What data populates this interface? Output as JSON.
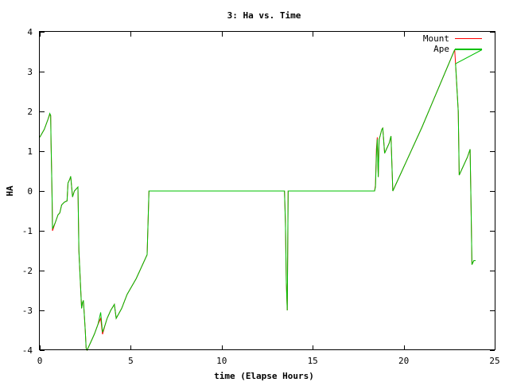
{
  "chart_data": {
    "type": "line",
    "title": "3: Ha vs. Time",
    "xlabel": "time (Elapse Hours)",
    "ylabel": "HA",
    "xlim": [
      0,
      25
    ],
    "ylim": [
      -4,
      4
    ],
    "xticks": [
      0,
      5,
      10,
      15,
      20,
      25
    ],
    "yticks": [
      -4,
      -3,
      -2,
      -1,
      0,
      1,
      2,
      3,
      4
    ],
    "grid": false,
    "legend_position": "top-right",
    "series": [
      {
        "name": "Mount",
        "color": "#ff0000",
        "points": [
          [
            0.0,
            1.35
          ],
          [
            0.25,
            1.55
          ],
          [
            0.45,
            1.8
          ],
          [
            0.55,
            1.92
          ],
          [
            0.6,
            1.9
          ],
          [
            0.62,
            1.2
          ],
          [
            0.65,
            0.5
          ],
          [
            0.68,
            -0.3
          ],
          [
            0.7,
            -1.0
          ],
          [
            0.85,
            -0.8
          ],
          [
            1.0,
            -0.6
          ],
          [
            1.1,
            -0.55
          ],
          [
            1.2,
            -0.35
          ],
          [
            1.35,
            -0.28
          ],
          [
            1.5,
            -0.25
          ],
          [
            1.55,
            0.2
          ],
          [
            1.65,
            0.3
          ],
          [
            1.7,
            0.37
          ],
          [
            1.8,
            -0.15
          ],
          [
            1.9,
            0.0
          ],
          [
            2.1,
            0.1
          ],
          [
            2.15,
            -1.5
          ],
          [
            2.3,
            -2.95
          ],
          [
            2.35,
            -2.8
          ],
          [
            2.4,
            -2.75
          ],
          [
            2.5,
            -3.5
          ],
          [
            2.55,
            -3.95
          ],
          [
            2.6,
            -4.0
          ],
          [
            2.8,
            -3.8
          ],
          [
            3.0,
            -3.6
          ],
          [
            3.2,
            -3.35
          ],
          [
            3.35,
            -3.2
          ],
          [
            3.45,
            -3.6
          ],
          [
            3.6,
            -3.35
          ],
          [
            3.7,
            -3.2
          ],
          [
            3.9,
            -3.0
          ],
          [
            4.1,
            -2.85
          ],
          [
            4.2,
            -3.2
          ],
          [
            4.5,
            -2.95
          ],
          [
            4.8,
            -2.6
          ],
          [
            5.3,
            -2.2
          ],
          [
            5.9,
            -1.6
          ],
          [
            6.0,
            0.0
          ],
          [
            8.0,
            0.0
          ],
          [
            10.0,
            0.0
          ],
          [
            12.0,
            0.0
          ],
          [
            13.45,
            0.0
          ],
          [
            13.5,
            -0.8
          ],
          [
            13.55,
            -2.3
          ],
          [
            13.6,
            -3.0
          ],
          [
            13.65,
            0.0
          ],
          [
            15.0,
            0.0
          ],
          [
            17.0,
            0.0
          ],
          [
            18.4,
            0.0
          ],
          [
            18.45,
            0.15
          ],
          [
            18.5,
            1.05
          ],
          [
            18.55,
            1.35
          ],
          [
            18.6,
            0.35
          ],
          [
            18.65,
            1.3
          ],
          [
            18.7,
            1.38
          ],
          [
            18.8,
            1.55
          ],
          [
            18.85,
            1.58
          ],
          [
            18.95,
            0.95
          ],
          [
            19.2,
            1.2
          ],
          [
            19.3,
            1.38
          ],
          [
            19.4,
            0.0
          ],
          [
            21.0,
            1.6
          ],
          [
            22.8,
            3.55
          ],
          [
            22.85,
            3.2
          ],
          [
            23.0,
            2.0
          ],
          [
            23.05,
            0.4
          ],
          [
            23.5,
            0.85
          ],
          [
            23.65,
            1.05
          ],
          [
            23.7,
            -0.4
          ],
          [
            23.75,
            -1.85
          ],
          [
            23.85,
            -1.75
          ],
          [
            23.95,
            -1.75
          ]
        ]
      },
      {
        "name": "Ape",
        "color": "#00c000",
        "points": [
          [
            0.0,
            1.35
          ],
          [
            0.25,
            1.55
          ],
          [
            0.45,
            1.8
          ],
          [
            0.55,
            1.95
          ],
          [
            0.6,
            1.9
          ],
          [
            0.62,
            1.2
          ],
          [
            0.65,
            0.5
          ],
          [
            0.68,
            -0.3
          ],
          [
            0.7,
            -0.95
          ],
          [
            0.85,
            -0.8
          ],
          [
            1.0,
            -0.6
          ],
          [
            1.1,
            -0.55
          ],
          [
            1.2,
            -0.35
          ],
          [
            1.35,
            -0.28
          ],
          [
            1.5,
            -0.25
          ],
          [
            1.55,
            0.2
          ],
          [
            1.65,
            0.3
          ],
          [
            1.7,
            0.37
          ],
          [
            1.8,
            -0.15
          ],
          [
            1.9,
            0.0
          ],
          [
            2.1,
            0.1
          ],
          [
            2.15,
            -1.5
          ],
          [
            2.3,
            -2.95
          ],
          [
            2.35,
            -2.8
          ],
          [
            2.4,
            -2.75
          ],
          [
            2.5,
            -3.5
          ],
          [
            2.55,
            -3.95
          ],
          [
            2.6,
            -4.0
          ],
          [
            2.8,
            -3.8
          ],
          [
            3.0,
            -3.6
          ],
          [
            3.2,
            -3.35
          ],
          [
            3.35,
            -3.05
          ],
          [
            3.45,
            -3.55
          ],
          [
            3.6,
            -3.35
          ],
          [
            3.7,
            -3.2
          ],
          [
            3.9,
            -3.0
          ],
          [
            4.1,
            -2.85
          ],
          [
            4.2,
            -3.2
          ],
          [
            4.5,
            -2.95
          ],
          [
            4.8,
            -2.6
          ],
          [
            5.3,
            -2.2
          ],
          [
            5.9,
            -1.6
          ],
          [
            6.0,
            0.0
          ],
          [
            8.0,
            0.0
          ],
          [
            10.0,
            0.0
          ],
          [
            12.0,
            0.0
          ],
          [
            13.45,
            0.0
          ],
          [
            13.5,
            -0.8
          ],
          [
            13.55,
            -2.3
          ],
          [
            13.6,
            -3.0
          ],
          [
            13.65,
            0.0
          ],
          [
            15.0,
            0.0
          ],
          [
            17.0,
            0.0
          ],
          [
            18.4,
            0.0
          ],
          [
            18.45,
            0.1
          ],
          [
            18.5,
            0.9
          ],
          [
            18.55,
            1.3
          ],
          [
            18.6,
            0.35
          ],
          [
            18.65,
            1.3
          ],
          [
            18.7,
            1.38
          ],
          [
            18.8,
            1.55
          ],
          [
            18.85,
            1.58
          ],
          [
            18.95,
            0.95
          ],
          [
            19.2,
            1.2
          ],
          [
            19.3,
            1.38
          ],
          [
            19.4,
            0.0
          ],
          [
            21.0,
            1.6
          ],
          [
            22.8,
            3.55
          ],
          [
            24.3,
            3.55
          ],
          [
            22.85,
            3.2
          ],
          [
            23.0,
            2.0
          ],
          [
            23.05,
            0.4
          ],
          [
            23.5,
            0.85
          ],
          [
            23.65,
            1.05
          ],
          [
            23.7,
            -0.4
          ],
          [
            23.75,
            -1.85
          ],
          [
            23.85,
            -1.75
          ],
          [
            23.95,
            -1.75
          ]
        ]
      }
    ]
  }
}
